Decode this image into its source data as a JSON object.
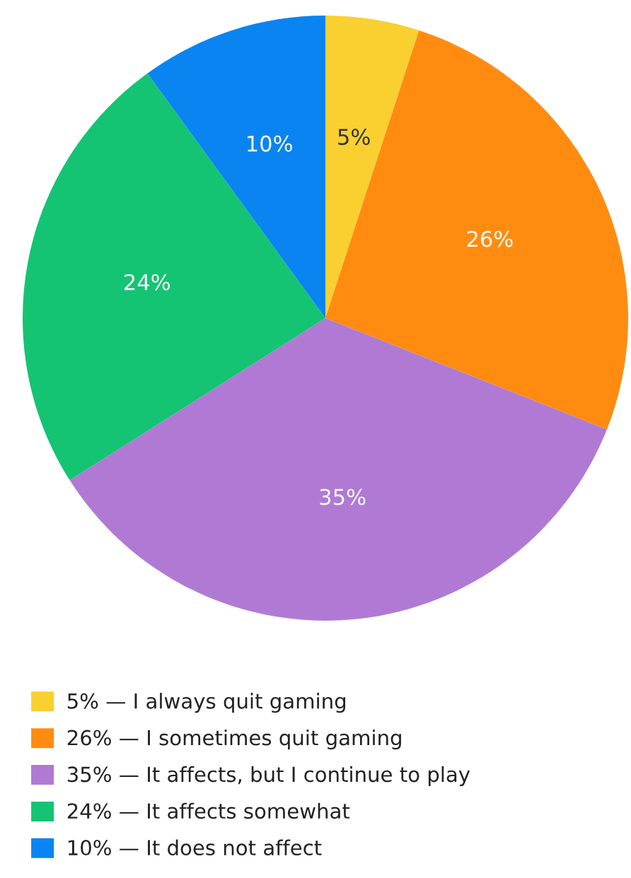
{
  "chart_data": {
    "type": "pie",
    "categories": [
      "5% — I always quit gaming",
      "26% — I sometimes quit gaming",
      "35% — It affects, but I continue to play",
      "24% — It affects somewhat",
      "10% — It does not affect"
    ],
    "values": [
      5,
      26,
      35,
      24,
      10
    ],
    "colors": [
      "#f9d030",
      "#ff8c10",
      "#b07ad4",
      "#14c473",
      "#0a84f0"
    ],
    "value_labels": [
      "5%",
      "26%",
      "35%",
      "24%",
      "10%"
    ],
    "legend": "bottom"
  }
}
